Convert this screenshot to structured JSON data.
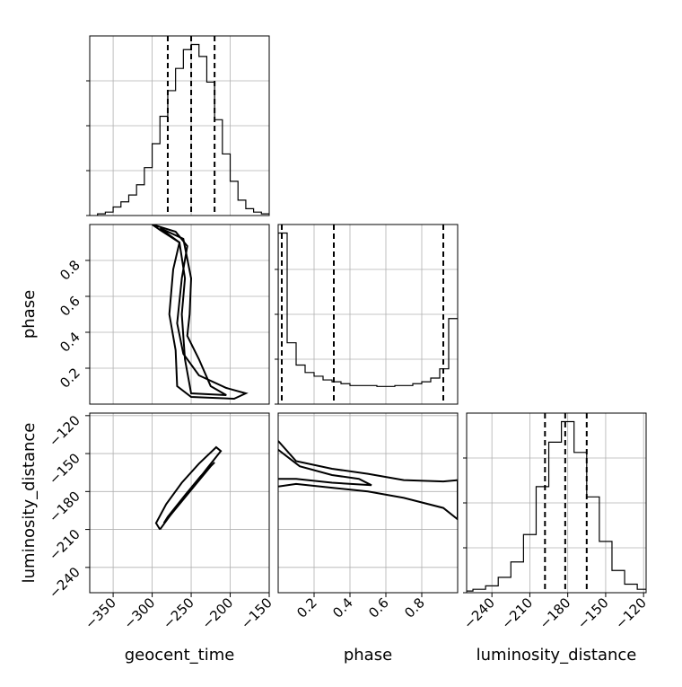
{
  "chart_data": {
    "type": "corner",
    "parameters": [
      "geocent_time",
      "phase",
      "luminosity_distance"
    ],
    "grid": true,
    "panels": {
      "geocent_time": {
        "type": "histogram",
        "xlim": [
          -380,
          -150
        ],
        "bin_edges": [
          -370,
          -360,
          -350,
          -340,
          -330,
          -320,
          -310,
          -300,
          -290,
          -280,
          -270,
          -260,
          -250,
          -240,
          -230,
          -220,
          -210,
          -200,
          -190,
          -180,
          -170,
          -160,
          -150
        ],
        "counts": [
          0.01,
          0.02,
          0.05,
          0.08,
          0.12,
          0.18,
          0.28,
          0.42,
          0.58,
          0.73,
          0.86,
          0.97,
          1.0,
          0.93,
          0.78,
          0.56,
          0.36,
          0.2,
          0.09,
          0.04,
          0.02,
          0.01
        ],
        "quantiles": [
          -280,
          -250,
          -220
        ]
      },
      "phase": {
        "type": "histogram",
        "xlim": [
          0,
          1
        ],
        "bin_edges": [
          0.0,
          0.05,
          0.1,
          0.15,
          0.2,
          0.25,
          0.3,
          0.35,
          0.4,
          0.45,
          0.5,
          0.55,
          0.6,
          0.65,
          0.7,
          0.75,
          0.8,
          0.85,
          0.9,
          0.95,
          1.0
        ],
        "counts": [
          0.92,
          0.33,
          0.21,
          0.17,
          0.15,
          0.13,
          0.12,
          0.11,
          0.1,
          0.1,
          0.1,
          0.095,
          0.095,
          0.1,
          0.1,
          0.11,
          0.12,
          0.14,
          0.19,
          0.46
        ],
        "quantiles": [
          0.02,
          0.31,
          0.92
        ]
      },
      "luminosity_distance": {
        "type": "histogram",
        "xlim": [
          -260,
          -118
        ],
        "bin_edges": [
          -265,
          -255,
          -245,
          -235,
          -225,
          -215,
          -205,
          -195,
          -185,
          -175,
          -165,
          -155,
          -145,
          -135,
          -125,
          -115
        ],
        "counts": [
          0.01,
          0.02,
          0.04,
          0.09,
          0.18,
          0.34,
          0.62,
          0.88,
          1.0,
          0.82,
          0.56,
          0.3,
          0.13,
          0.05,
          0.02
        ],
        "quantiles": [
          -198,
          -182,
          -165
        ]
      },
      "phase_vs_geocent_time": {
        "type": "contour",
        "xlim": [
          -380,
          -150
        ],
        "ylim": [
          0.0,
          1.0
        ],
        "contours": [
          [
            [
              -300,
              1.0
            ],
            [
              -270,
              0.96
            ],
            [
              -255,
              0.88
            ],
            [
              -262,
              0.7
            ],
            [
              -268,
              0.45
            ],
            [
              -260,
              0.28
            ],
            [
              -240,
              0.16
            ],
            [
              -205,
              0.09
            ],
            [
              -180,
              0.06
            ],
            [
              -195,
              0.03
            ],
            [
              -250,
              0.04
            ],
            [
              -268,
              0.1
            ],
            [
              -270,
              0.3
            ],
            [
              -278,
              0.5
            ],
            [
              -273,
              0.75
            ],
            [
              -265,
              0.9
            ],
            [
              -290,
              0.97
            ],
            [
              -300,
              1.0
            ]
          ],
          [
            [
              -290,
              0.98
            ],
            [
              -260,
              0.92
            ],
            [
              -250,
              0.7
            ],
            [
              -252,
              0.5
            ],
            [
              -255,
              0.38
            ],
            [
              -240,
              0.25
            ],
            [
              -225,
              0.1
            ],
            [
              -205,
              0.05
            ],
            [
              -250,
              0.06
            ],
            [
              -258,
              0.25
            ],
            [
              -262,
              0.5
            ],
            [
              -258,
              0.7
            ],
            [
              -265,
              0.9
            ],
            [
              -290,
              0.98
            ]
          ]
        ]
      },
      "luminosity_distance_vs_geocent_time": {
        "type": "contour",
        "xlim": [
          -380,
          -150
        ],
        "ylim": [
          -260,
          -118
        ],
        "contours": [
          [
            [
              -290,
              -210
            ],
            [
              -270,
              -193
            ],
            [
              -250,
              -178
            ],
            [
              -230,
              -162
            ],
            [
              -212,
              -148
            ],
            [
              -218,
              -145
            ],
            [
              -240,
              -158
            ],
            [
              -262,
              -173
            ],
            [
              -282,
              -190
            ],
            [
              -295,
              -205
            ],
            [
              -290,
              -210
            ]
          ],
          [
            [
              -285,
              -205
            ],
            [
              -265,
              -190
            ],
            [
              -245,
              -175
            ],
            [
              -225,
              -160
            ],
            [
              -220,
              -157
            ],
            [
              -238,
              -168
            ],
            [
              -258,
              -183
            ],
            [
              -280,
              -200
            ],
            [
              -285,
              -205
            ]
          ]
        ]
      },
      "luminosity_distance_vs_phase": {
        "type": "contour",
        "xlim": [
          0,
          1
        ],
        "ylim": [
          -260,
          -118
        ],
        "contours": [
          [
            [
              0.0,
              -140
            ],
            [
              0.1,
              -156
            ],
            [
              0.3,
              -162
            ],
            [
              0.5,
              -166
            ],
            [
              0.7,
              -171
            ],
            [
              0.92,
              -172
            ],
            [
              1.0,
              -171
            ],
            [
              1.0,
              -202
            ],
            [
              0.92,
              -193
            ],
            [
              0.7,
              -185
            ],
            [
              0.5,
              -180
            ],
            [
              0.3,
              -177
            ],
            [
              0.1,
              -174
            ],
            [
              0.0,
              -176
            ]
          ],
          [
            [
              0.0,
              -147
            ],
            [
              0.12,
              -160
            ],
            [
              0.3,
              -167
            ],
            [
              0.45,
              -170
            ],
            [
              0.52,
              -175
            ],
            [
              0.3,
              -173
            ],
            [
              0.1,
              -170
            ],
            [
              0.0,
              -170
            ]
          ]
        ]
      }
    },
    "ticks": {
      "geocent_time": [
        -350,
        -300,
        -250,
        -200,
        -150
      ],
      "phase": [
        0.2,
        0.4,
        0.6,
        0.8
      ],
      "luminosity_distance": [
        -240,
        -210,
        -180,
        -150,
        -120
      ]
    },
    "tick_labels": {
      "geocent_time": [
        "−350",
        "−300",
        "−250",
        "−200",
        "−150"
      ],
      "phase": [
        "0.2",
        "0.4",
        "0.6",
        "0.8"
      ],
      "luminosity_distance": [
        "−240",
        "−210",
        "−180",
        "−150",
        "−120"
      ]
    },
    "axis_labels": {
      "geocent_time": "geocent_time",
      "phase": "phase",
      "luminosity_distance": "luminosity_distance"
    }
  }
}
